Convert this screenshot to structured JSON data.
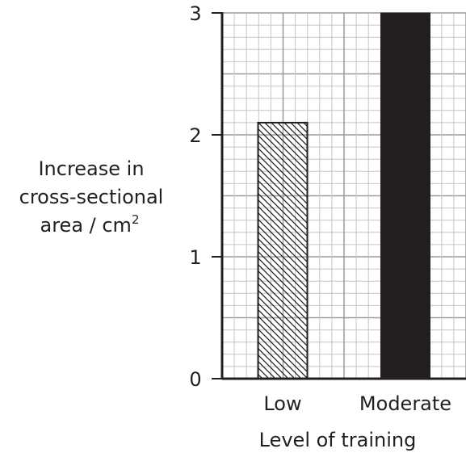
{
  "chart_data": {
    "type": "bar",
    "categories": [
      "Low",
      "Moderate"
    ],
    "values": [
      2.1,
      3
    ],
    "bar_styles": [
      "hatched",
      "solid"
    ],
    "xlabel": "Level of training",
    "ylabel_lines": [
      "Increase in",
      "cross-sectional",
      "area / cm"
    ],
    "ylabel_superscript": "2",
    "ylim": [
      0,
      3
    ],
    "yticks": [
      "0",
      "1",
      "2",
      "3"
    ],
    "grid": true,
    "colors": {
      "grid_minor": "#c4c4c4",
      "grid_major": "#9a9a9a",
      "axis": "#231f20",
      "bar": "#231f20"
    }
  }
}
